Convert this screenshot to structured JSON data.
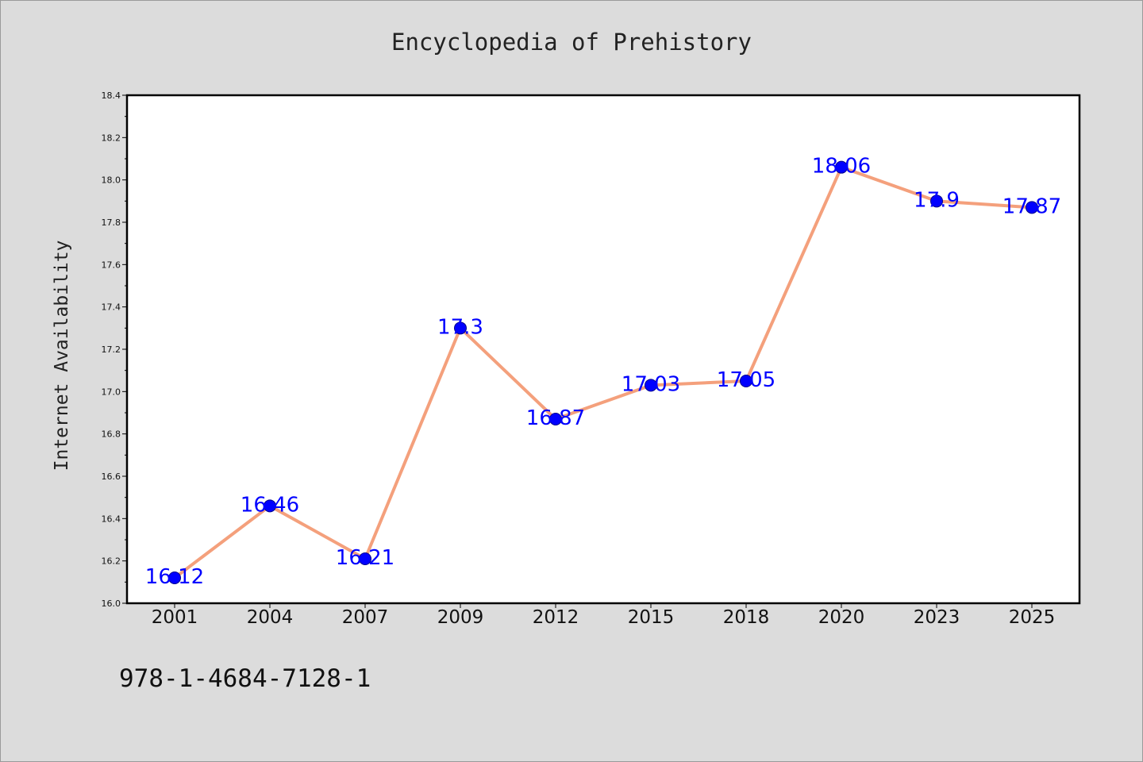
{
  "chart_data": {
    "type": "line",
    "title": "Encyclopedia of Prehistory",
    "xlabel": "",
    "ylabel": "Internet Availability",
    "categories": [
      "2001",
      "2004",
      "2007",
      "2009",
      "2012",
      "2015",
      "2018",
      "2020",
      "2023",
      "2025"
    ],
    "series": [
      {
        "values": [
          16.12,
          16.46,
          16.21,
          17.3,
          16.87,
          17.03,
          17.05,
          18.06,
          17.9,
          17.87
        ],
        "data_labels": [
          "16.12",
          "16.46",
          "16.21",
          "17.3",
          "16.87",
          "17.03",
          "17.05",
          "18.06",
          "17.9",
          "17.87"
        ]
      }
    ],
    "ylim": [
      16.0,
      18.4
    ],
    "yticks": [
      "16.0",
      "16.2",
      "16.4",
      "16.6",
      "16.8",
      "17.0",
      "17.2",
      "17.4",
      "17.6",
      "17.8",
      "18.0",
      "18.2",
      "18.4"
    ],
    "grid": false,
    "line_color": "#f4a07c",
    "marker_color": "#0000ff",
    "label_color": "#0000ff",
    "background_color": "#dcdcdc",
    "plot_background_color": "#ffffff"
  },
  "footer": {
    "isbn": "978-1-4684-7128-1"
  }
}
